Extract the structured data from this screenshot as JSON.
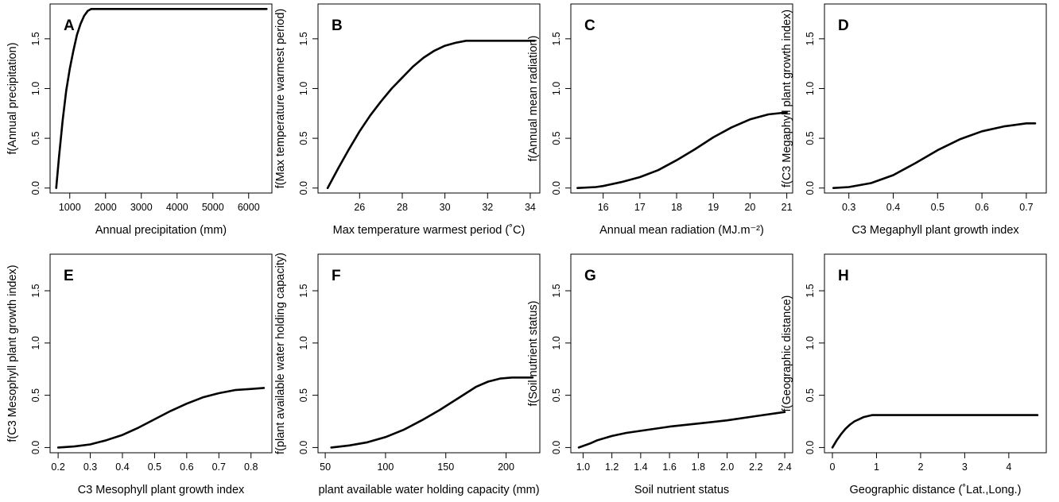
{
  "chart_data": [
    {
      "panel": "A",
      "type": "line",
      "xlabel": "Annual precipitation (mm)",
      "ylabel": "f(Annual precipitation)",
      "xticks": [
        1000,
        2000,
        3000,
        4000,
        5000,
        6000
      ],
      "yticks": [
        "0.0",
        "0.5",
        "1.0",
        "1.5"
      ],
      "xlim": [
        450,
        6650
      ],
      "ylim": [
        -0.05,
        1.85
      ],
      "series": [
        {
          "x": [
            620,
            700,
            800,
            900,
            1000,
            1100,
            1200,
            1300,
            1400,
            1500,
            1600,
            1700,
            1800,
            2000,
            3000,
            4000,
            5000,
            6000,
            6500
          ],
          "y": [
            0.0,
            0.32,
            0.68,
            0.98,
            1.2,
            1.38,
            1.54,
            1.65,
            1.73,
            1.78,
            1.8,
            1.8,
            1.8,
            1.8,
            1.8,
            1.8,
            1.8,
            1.8,
            1.8
          ]
        }
      ]
    },
    {
      "panel": "B",
      "type": "line",
      "xlabel": "Max temperature warmest period (˚C)",
      "ylabel": "f(Max temperature warmest period)",
      "xticks": [
        26,
        28,
        30,
        32,
        34
      ],
      "yticks": [
        "0.0",
        "0.5",
        "1.0",
        "1.5"
      ],
      "xlim": [
        24.05,
        34.45
      ],
      "ylim": [
        -0.05,
        1.85
      ],
      "series": [
        {
          "x": [
            24.5,
            25.0,
            25.5,
            26.0,
            26.5,
            27.0,
            27.5,
            28.0,
            28.5,
            29.0,
            29.5,
            30.0,
            30.5,
            31.0,
            31.5,
            32.0,
            33.0,
            34.2
          ],
          "y": [
            0.0,
            0.2,
            0.39,
            0.57,
            0.73,
            0.87,
            1.0,
            1.11,
            1.22,
            1.31,
            1.38,
            1.43,
            1.46,
            1.48,
            1.48,
            1.48,
            1.48,
            1.48
          ]
        }
      ]
    },
    {
      "panel": "C",
      "type": "line",
      "xlabel": "Annual mean radiation (MJ.m⁻²)",
      "ylabel": "f(Annual mean radiation)",
      "xticks": [
        16,
        17,
        18,
        19,
        20,
        21
      ],
      "yticks": [
        "0.0",
        "0.5",
        "1.0",
        "1.5"
      ],
      "xlim": [
        15.12,
        21.16
      ],
      "ylim": [
        -0.05,
        1.85
      ],
      "series": [
        {
          "x": [
            15.3,
            15.8,
            16.0,
            16.5,
            17.0,
            17.5,
            18.0,
            18.5,
            19.0,
            19.5,
            20.0,
            20.5,
            21.0
          ],
          "y": [
            0.0,
            0.01,
            0.02,
            0.06,
            0.11,
            0.18,
            0.28,
            0.39,
            0.51,
            0.61,
            0.69,
            0.74,
            0.76
          ]
        }
      ]
    },
    {
      "panel": "D",
      "type": "line",
      "xlabel": "C3 Megaphyll plant growth index",
      "ylabel": "f(C3 Megaphyll plant growth index)",
      "xticks": [
        "0.3",
        "0.4",
        "0.5",
        "0.6",
        "0.7"
      ],
      "yticks": [
        "0.0",
        "0.5",
        "1.0",
        "1.5"
      ],
      "xlim": [
        0.245,
        0.745
      ],
      "ylim": [
        -0.05,
        1.85
      ],
      "series": [
        {
          "x": [
            0.265,
            0.3,
            0.35,
            0.4,
            0.45,
            0.5,
            0.55,
            0.6,
            0.65,
            0.7,
            0.72
          ],
          "y": [
            0.0,
            0.01,
            0.05,
            0.13,
            0.25,
            0.38,
            0.49,
            0.57,
            0.62,
            0.65,
            0.65
          ]
        }
      ]
    },
    {
      "panel": "E",
      "type": "line",
      "xlabel": "C3 Mesophyll plant growth index",
      "ylabel": "f(C3 Mesophyll plant growth index)",
      "xticks": [
        "0.2",
        "0.3",
        "0.4",
        "0.5",
        "0.6",
        "0.7",
        "0.8"
      ],
      "yticks": [
        "0.0",
        "0.5",
        "1.0",
        "1.5"
      ],
      "xlim": [
        0.175,
        0.865
      ],
      "ylim": [
        -0.05,
        1.85
      ],
      "series": [
        {
          "x": [
            0.2,
            0.25,
            0.3,
            0.35,
            0.4,
            0.45,
            0.5,
            0.55,
            0.6,
            0.65,
            0.7,
            0.75,
            0.8,
            0.84
          ],
          "y": [
            0.0,
            0.01,
            0.03,
            0.07,
            0.12,
            0.19,
            0.27,
            0.35,
            0.42,
            0.48,
            0.52,
            0.55,
            0.56,
            0.57
          ]
        }
      ]
    },
    {
      "panel": "F",
      "type": "line",
      "xlabel": "plant available water holding capacity (mm)",
      "ylabel": "f(plant available water holding capacity)",
      "xticks": [
        50,
        100,
        150,
        200
      ],
      "yticks": [
        "0.0",
        "0.5",
        "1.0",
        "1.5"
      ],
      "xlim": [
        44,
        228
      ],
      "ylim": [
        -0.05,
        1.85
      ],
      "series": [
        {
          "x": [
            55,
            70,
            85,
            100,
            115,
            130,
            145,
            160,
            175,
            185,
            195,
            205,
            215,
            222
          ],
          "y": [
            0.0,
            0.02,
            0.05,
            0.1,
            0.17,
            0.26,
            0.36,
            0.47,
            0.58,
            0.63,
            0.66,
            0.67,
            0.67,
            0.67
          ]
        }
      ]
    },
    {
      "panel": "G",
      "type": "line",
      "xlabel": "Soil nutrient status",
      "ylabel": "f(Soil nutrient status)",
      "xticks": [
        "1.0",
        "1.2",
        "1.4",
        "1.6",
        "1.8",
        "2.0",
        "2.2",
        "2.4"
      ],
      "yticks": [
        "0.0",
        "0.5",
        "1.0",
        "1.5"
      ],
      "xlim": [
        0.915,
        2.455
      ],
      "ylim": [
        -0.05,
        1.85
      ],
      "series": [
        {
          "x": [
            0.97,
            1.05,
            1.1,
            1.2,
            1.3,
            1.4,
            1.6,
            1.8,
            2.0,
            2.2,
            2.4
          ],
          "y": [
            0.0,
            0.04,
            0.07,
            0.11,
            0.14,
            0.16,
            0.2,
            0.23,
            0.26,
            0.3,
            0.34
          ]
        }
      ]
    },
    {
      "panel": "H",
      "type": "line",
      "xlabel": "Geographic distance (˚Lat.,Long.)",
      "ylabel": "f(Geographic distance)",
      "xticks": [
        0,
        1,
        2,
        3,
        4
      ],
      "yticks": [
        "0.0",
        "0.5",
        "1.0",
        "1.5"
      ],
      "xlim": [
        -0.18,
        4.85
      ],
      "ylim": [
        -0.05,
        1.85
      ],
      "series": [
        {
          "x": [
            0.0,
            0.1,
            0.2,
            0.3,
            0.4,
            0.5,
            0.6,
            0.7,
            0.8,
            0.9,
            1.0,
            1.1,
            1.5,
            2.0,
            3.0,
            4.0,
            4.65
          ],
          "y": [
            0.0,
            0.07,
            0.13,
            0.18,
            0.22,
            0.25,
            0.27,
            0.29,
            0.3,
            0.31,
            0.31,
            0.31,
            0.31,
            0.31,
            0.31,
            0.31,
            0.31
          ]
        }
      ]
    }
  ]
}
